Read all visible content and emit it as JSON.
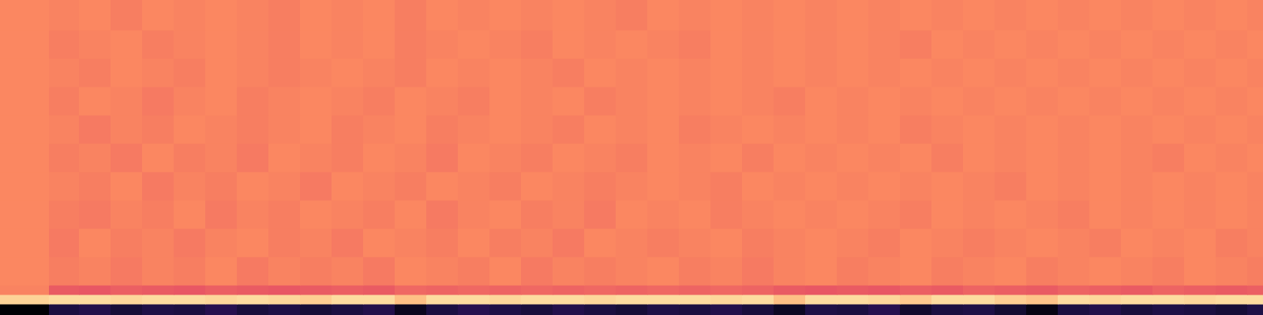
{
  "chart_data": {
    "type": "heatmap",
    "color": "magma",
    "tick_labels": false,
    "grid": false,
    "xlim": [
      0,
      400
    ],
    "ylim": [
      0,
      40
    ],
    "color_range": [
      0,
      1
    ],
    "x_edges": [
      0,
      15.5,
      25,
      35,
      45,
      55,
      65,
      75,
      85,
      95,
      105,
      115,
      125,
      135,
      145,
      155,
      165,
      175,
      185,
      195,
      205,
      215,
      225,
      235,
      245,
      255,
      265,
      275,
      285,
      295,
      305,
      315,
      325,
      335,
      345,
      355,
      365,
      375,
      385,
      395,
      400
    ],
    "y_edges": [
      0,
      1.4,
      2.6,
      3.8,
      7.4,
      11,
      14.6,
      18.2,
      21.8,
      25.4,
      29,
      32.6,
      36.2,
      40
    ],
    "cells": [
      [
        0.0,
        0.12,
        0.14,
        0.1,
        0.13,
        0.12,
        0.15,
        0.11,
        0.13,
        0.1,
        0.12,
        0.14,
        0.05,
        0.12,
        0.15,
        0.13,
        0.11,
        0.14,
        0.12,
        0.1,
        0.13,
        0.12,
        0.14,
        0.11,
        0.06,
        0.13,
        0.12,
        0.15,
        0.08,
        0.12,
        0.13,
        0.09,
        0.03,
        0.12,
        0.14,
        0.11,
        0.13,
        0.12,
        0.1,
        0.13
      ],
      [
        0.91,
        0.93,
        0.93,
        0.92,
        0.93,
        0.93,
        0.92,
        0.93,
        0.92,
        0.9,
        0.93,
        0.93,
        0.87,
        0.93,
        0.93,
        0.92,
        0.93,
        0.93,
        0.92,
        0.93,
        0.93,
        0.93,
        0.92,
        0.93,
        0.87,
        0.93,
        0.93,
        0.92,
        0.89,
        0.93,
        0.93,
        0.9,
        0.88,
        0.93,
        0.92,
        0.93,
        0.93,
        0.92,
        0.93,
        0.93
      ],
      [
        0.74,
        0.65,
        0.64,
        0.66,
        0.65,
        0.64,
        0.66,
        0.65,
        0.64,
        0.65,
        0.66,
        0.65,
        0.68,
        0.67,
        0.68,
        0.67,
        0.68,
        0.67,
        0.68,
        0.67,
        0.68,
        0.67,
        0.68,
        0.67,
        0.65,
        0.64,
        0.65,
        0.64,
        0.66,
        0.65,
        0.67,
        0.66,
        0.65,
        0.67,
        0.66,
        0.65,
        0.67,
        0.66,
        0.65,
        0.66
      ],
      [
        0.75,
        0.73,
        0.74,
        0.72,
        0.74,
        0.73,
        0.75,
        0.72,
        0.74,
        0.73,
        0.74,
        0.72,
        0.75,
        0.74,
        0.73,
        0.75,
        0.72,
        0.74,
        0.73,
        0.74,
        0.75,
        0.73,
        0.74,
        0.72,
        0.74,
        0.75,
        0.73,
        0.74,
        0.75,
        0.73,
        0.74,
        0.75,
        0.73,
        0.74,
        0.75,
        0.74,
        0.73,
        0.75,
        0.74,
        0.73
      ],
      [
        0.75,
        0.72,
        0.75,
        0.73,
        0.74,
        0.72,
        0.74,
        0.75,
        0.73,
        0.74,
        0.72,
        0.75,
        0.74,
        0.73,
        0.75,
        0.73,
        0.74,
        0.72,
        0.75,
        0.74,
        0.73,
        0.74,
        0.75,
        0.73,
        0.74,
        0.75,
        0.74,
        0.73,
        0.75,
        0.74,
        0.73,
        0.74,
        0.75,
        0.74,
        0.73,
        0.75,
        0.74,
        0.75,
        0.73,
        0.74
      ],
      [
        0.75,
        0.73,
        0.72,
        0.74,
        0.73,
        0.75,
        0.72,
        0.74,
        0.73,
        0.75,
        0.74,
        0.73,
        0.75,
        0.72,
        0.74,
        0.75,
        0.73,
        0.74,
        0.72,
        0.75,
        0.74,
        0.75,
        0.73,
        0.74,
        0.75,
        0.74,
        0.75,
        0.74,
        0.73,
        0.75,
        0.74,
        0.75,
        0.74,
        0.73,
        0.75,
        0.74,
        0.75,
        0.74,
        0.75,
        0.74
      ],
      [
        0.75,
        0.74,
        0.73,
        0.75,
        0.72,
        0.74,
        0.73,
        0.75,
        0.74,
        0.72,
        0.75,
        0.74,
        0.73,
        0.75,
        0.74,
        0.73,
        0.75,
        0.74,
        0.73,
        0.74,
        0.75,
        0.74,
        0.73,
        0.75,
        0.74,
        0.75,
        0.74,
        0.75,
        0.74,
        0.75,
        0.74,
        0.73,
        0.75,
        0.74,
        0.75,
        0.74,
        0.75,
        0.74,
        0.75,
        0.74
      ],
      [
        0.75,
        0.73,
        0.74,
        0.72,
        0.75,
        0.73,
        0.74,
        0.72,
        0.75,
        0.74,
        0.73,
        0.75,
        0.74,
        0.72,
        0.75,
        0.74,
        0.73,
        0.75,
        0.74,
        0.73,
        0.75,
        0.74,
        0.75,
        0.73,
        0.75,
        0.74,
        0.75,
        0.74,
        0.75,
        0.73,
        0.75,
        0.74,
        0.75,
        0.74,
        0.75,
        0.74,
        0.73,
        0.75,
        0.74,
        0.75
      ],
      [
        0.75,
        0.74,
        0.72,
        0.74,
        0.73,
        0.75,
        0.74,
        0.73,
        0.74,
        0.75,
        0.73,
        0.74,
        0.75,
        0.73,
        0.74,
        0.75,
        0.74,
        0.73,
        0.75,
        0.74,
        0.75,
        0.73,
        0.74,
        0.75,
        0.74,
        0.75,
        0.74,
        0.75,
        0.73,
        0.74,
        0.75,
        0.74,
        0.75,
        0.74,
        0.75,
        0.74,
        0.75,
        0.74,
        0.75,
        0.74
      ],
      [
        0.75,
        0.73,
        0.75,
        0.74,
        0.72,
        0.74,
        0.75,
        0.73,
        0.74,
        0.75,
        0.74,
        0.73,
        0.75,
        0.74,
        0.73,
        0.75,
        0.74,
        0.75,
        0.73,
        0.74,
        0.75,
        0.74,
        0.75,
        0.74,
        0.73,
        0.75,
        0.74,
        0.75,
        0.74,
        0.75,
        0.74,
        0.75,
        0.74,
        0.75,
        0.74,
        0.75,
        0.74,
        0.75,
        0.74,
        0.75
      ],
      [
        0.75,
        0.74,
        0.73,
        0.75,
        0.74,
        0.73,
        0.75,
        0.74,
        0.73,
        0.74,
        0.75,
        0.74,
        0.73,
        0.75,
        0.74,
        0.75,
        0.74,
        0.73,
        0.75,
        0.74,
        0.75,
        0.74,
        0.75,
        0.74,
        0.75,
        0.74,
        0.75,
        0.74,
        0.75,
        0.74,
        0.75,
        0.74,
        0.75,
        0.74,
        0.75,
        0.74,
        0.75,
        0.74,
        0.75,
        0.74
      ],
      [
        0.75,
        0.73,
        0.74,
        0.75,
        0.73,
        0.74,
        0.75,
        0.74,
        0.73,
        0.75,
        0.74,
        0.75,
        0.73,
        0.74,
        0.75,
        0.74,
        0.73,
        0.75,
        0.74,
        0.75,
        0.74,
        0.73,
        0.75,
        0.74,
        0.75,
        0.74,
        0.75,
        0.74,
        0.73,
        0.75,
        0.74,
        0.75,
        0.74,
        0.75,
        0.74,
        0.75,
        0.74,
        0.75,
        0.74,
        0.75
      ],
      [
        0.75,
        0.74,
        0.75,
        0.73,
        0.75,
        0.74,
        0.75,
        0.74,
        0.73,
        0.75,
        0.74,
        0.75,
        0.73,
        0.75,
        0.74,
        0.75,
        0.74,
        0.75,
        0.74,
        0.73,
        0.75,
        0.74,
        0.75,
        0.74,
        0.75,
        0.74,
        0.75,
        0.74,
        0.75,
        0.74,
        0.75,
        0.74,
        0.75,
        0.74,
        0.75,
        0.74,
        0.75,
        0.74,
        0.75,
        0.74
      ]
    ]
  }
}
